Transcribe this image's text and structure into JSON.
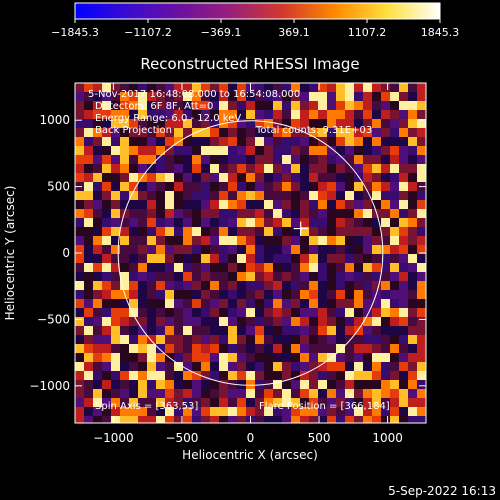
{
  "chart_data": {
    "type": "heatmap",
    "title": "Reconstructed RHESSI Image",
    "xlabel": "Heliocentric X (arcsec)",
    "ylabel": "Heliocentric Y (arcsec)",
    "xlim": [
      -1280,
      1280
    ],
    "ylim": [
      -1280,
      1280
    ],
    "x_ticks": [
      -1000,
      -500,
      0,
      500,
      1000
    ],
    "x_tick_labels": [
      "−1000",
      "−500",
      "0",
      "500",
      "1000"
    ],
    "y_ticks": [
      -1000,
      -500,
      0,
      500,
      1000
    ],
    "y_tick_labels": [
      "−1000",
      "−500",
      "0",
      "500",
      "1000"
    ],
    "colorbar": {
      "range": [
        -1845.3,
        1845.3
      ],
      "tick_values": [
        -1845.3,
        -1107.2,
        -369.1,
        369.1,
        1107.2,
        1845.3
      ],
      "tick_labels": [
        "−1845.3",
        "−1107.2",
        "−369.1",
        "369.1",
        "1107.2",
        "1845.3"
      ],
      "colormap": [
        "#0000ff",
        "#3a0bd0",
        "#6b10a0",
        "#9b1f7a",
        "#d23a2a",
        "#ff8a00",
        "#ffe040",
        "#ffffff"
      ]
    },
    "annotations": {
      "time": "5-Nov-2017 16:48:08.000 to 16:54:08.000",
      "detectors": "Detectors: 6F 8F, Att=0",
      "energy": "Energy Range: 6.0 - 12.0 keV",
      "method": "Back Projection",
      "counts": "Total counts: 9.31E+03",
      "spin_axis": "Spin Axis = [363,53]",
      "flare_position": "Flare Position = [366,184]"
    },
    "solar_limb": {
      "center": [
        0,
        0
      ],
      "radius": 965
    },
    "flare_marker": [
      366,
      184
    ],
    "footer_date": "5-Sep-2022 16:13"
  }
}
